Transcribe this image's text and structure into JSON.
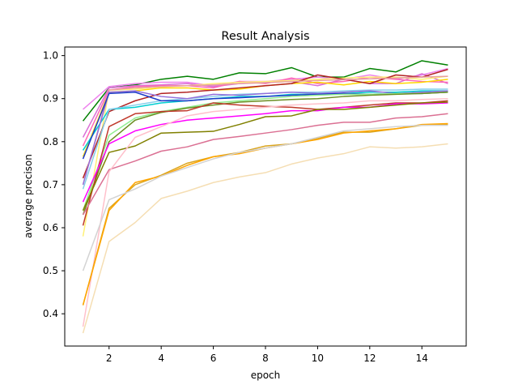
{
  "chart_data": {
    "type": "line",
    "title": "Result Analysis",
    "xlabel": "epoch",
    "ylabel": "average precison",
    "xlim": [
      0.3,
      15.7
    ],
    "ylim": [
      0.325,
      1.02
    ],
    "xticks": [
      2,
      4,
      6,
      8,
      10,
      12,
      14
    ],
    "yticks": [
      0.4,
      0.5,
      0.6,
      0.7,
      0.8,
      0.9,
      1.0
    ],
    "grid": false,
    "x": [
      1,
      2,
      3,
      4,
      5,
      6,
      7,
      8,
      9,
      10,
      11,
      12,
      13,
      14,
      15
    ],
    "series": [
      {
        "color": "#008000",
        "values": [
          0.848,
          0.925,
          0.932,
          0.945,
          0.952,
          0.945,
          0.96,
          0.958,
          0.972,
          0.95,
          0.95,
          0.97,
          0.962,
          0.988,
          0.978
        ]
      },
      {
        "color": "#ee82ee",
        "values": [
          0.875,
          0.928,
          0.935,
          0.938,
          0.938,
          0.93,
          0.94,
          0.94,
          0.945,
          0.95,
          0.945,
          0.955,
          0.945,
          0.955,
          0.97
        ]
      },
      {
        "color": "#da70d6",
        "values": [
          0.81,
          0.925,
          0.93,
          0.932,
          0.935,
          0.928,
          0.935,
          0.938,
          0.94,
          0.93,
          0.945,
          0.935,
          0.935,
          0.958,
          0.935
        ]
      },
      {
        "color": "#ff69b4",
        "values": [
          0.79,
          0.92,
          0.928,
          0.93,
          0.93,
          0.925,
          0.94,
          0.935,
          0.948,
          0.935,
          0.94,
          0.95,
          0.945,
          0.94,
          0.938
        ]
      },
      {
        "color": "#ffd700",
        "values": [
          0.765,
          0.915,
          0.918,
          0.925,
          0.925,
          0.92,
          0.922,
          0.93,
          0.935,
          0.938,
          0.932,
          0.94,
          0.935,
          0.938,
          0.945
        ]
      },
      {
        "color": "#fff176",
        "values": [
          0.58,
          0.92,
          0.922,
          0.928,
          0.93,
          0.935,
          0.938,
          0.94,
          0.942,
          0.945,
          0.948,
          0.95,
          0.95,
          0.945,
          0.952
        ]
      },
      {
        "color": "#b22222",
        "values": [
          0.715,
          0.87,
          0.895,
          0.912,
          0.915,
          0.92,
          0.925,
          0.93,
          0.935,
          0.955,
          0.945,
          0.935,
          0.955,
          0.95,
          0.968
        ]
      },
      {
        "color": "#e8a0a0",
        "values": [
          0.7,
          0.92,
          0.925,
          0.928,
          0.93,
          0.932,
          0.935,
          0.937,
          0.94,
          0.942,
          0.944,
          0.946,
          0.948,
          0.95,
          0.952
        ]
      },
      {
        "color": "#00ced1",
        "values": [
          0.78,
          0.875,
          0.88,
          0.89,
          0.895,
          0.9,
          0.905,
          0.905,
          0.91,
          0.91,
          0.912,
          0.915,
          0.915,
          0.918,
          0.918
        ]
      },
      {
        "color": "#87ceeb",
        "values": [
          0.69,
          0.875,
          0.885,
          0.895,
          0.9,
          0.905,
          0.91,
          0.912,
          0.915,
          0.915,
          0.918,
          0.92,
          0.92,
          0.922,
          0.922
        ]
      },
      {
        "color": "#9370db",
        "values": [
          0.7,
          0.915,
          0.918,
          0.905,
          0.9,
          0.91,
          0.908,
          0.912,
          0.915,
          0.912,
          0.915,
          0.918,
          0.912,
          0.915,
          0.918
        ]
      },
      {
        "color": "#1e3cc8",
        "values": [
          0.76,
          0.912,
          0.915,
          0.895,
          0.895,
          0.9,
          0.902,
          0.905,
          0.908,
          0.91,
          0.912,
          0.91,
          0.912,
          0.912,
          0.915
        ]
      },
      {
        "color": "#90ee90",
        "values": [
          0.64,
          0.815,
          0.855,
          0.87,
          0.88,
          0.89,
          0.895,
          0.9,
          0.905,
          0.908,
          0.91,
          0.91,
          0.912,
          0.912,
          0.915
        ]
      },
      {
        "color": "#6b8e23",
        "values": [
          0.63,
          0.8,
          0.85,
          0.868,
          0.878,
          0.885,
          0.892,
          0.895,
          0.898,
          0.9,
          0.905,
          0.908,
          0.91,
          0.912,
          0.915
        ]
      },
      {
        "color": "#c0392b",
        "values": [
          0.605,
          0.835,
          0.865,
          0.87,
          0.872,
          0.89,
          0.885,
          0.882,
          0.88,
          0.875,
          0.88,
          0.885,
          0.89,
          0.89,
          0.895
        ]
      },
      {
        "color": "#ff00ff",
        "values": [
          0.66,
          0.795,
          0.825,
          0.84,
          0.85,
          0.855,
          0.86,
          0.865,
          0.872,
          0.872,
          0.88,
          0.88,
          0.888,
          0.888,
          0.89
        ]
      },
      {
        "color": "#808000",
        "values": [
          0.64,
          0.775,
          0.79,
          0.82,
          0.822,
          0.824,
          0.84,
          0.858,
          0.86,
          0.875,
          0.875,
          0.88,
          0.885,
          0.89,
          0.892
        ]
      },
      {
        "color": "#db7093",
        "values": [
          0.63,
          0.735,
          0.755,
          0.778,
          0.788,
          0.805,
          0.812,
          0.82,
          0.828,
          0.838,
          0.845,
          0.845,
          0.855,
          0.858,
          0.865
        ]
      },
      {
        "color": "#ffc0cb",
        "values": [
          0.37,
          0.73,
          0.81,
          0.835,
          0.86,
          0.87,
          0.875,
          0.88,
          0.885,
          0.888,
          0.89,
          0.895,
          0.895,
          0.898,
          0.9
        ]
      },
      {
        "color": "#daa520",
        "values": [
          0.42,
          0.645,
          0.7,
          0.722,
          0.75,
          0.765,
          0.775,
          0.79,
          0.795,
          0.808,
          0.822,
          0.822,
          0.83,
          0.838,
          0.84
        ]
      },
      {
        "color": "#ffa500",
        "values": [
          0.42,
          0.64,
          0.705,
          0.72,
          0.745,
          0.765,
          0.772,
          0.785,
          0.795,
          0.805,
          0.82,
          0.825,
          0.83,
          0.84,
          0.842
        ]
      },
      {
        "color": "#d3d3d3",
        "values": [
          0.5,
          0.665,
          0.69,
          0.72,
          0.74,
          0.76,
          0.775,
          0.785,
          0.795,
          0.81,
          0.825,
          0.83,
          0.835,
          0.838,
          0.838
        ]
      },
      {
        "color": "#f5deb3",
        "values": [
          0.355,
          0.568,
          0.612,
          0.668,
          0.685,
          0.705,
          0.718,
          0.728,
          0.748,
          0.762,
          0.772,
          0.788,
          0.785,
          0.788,
          0.795
        ]
      }
    ]
  }
}
